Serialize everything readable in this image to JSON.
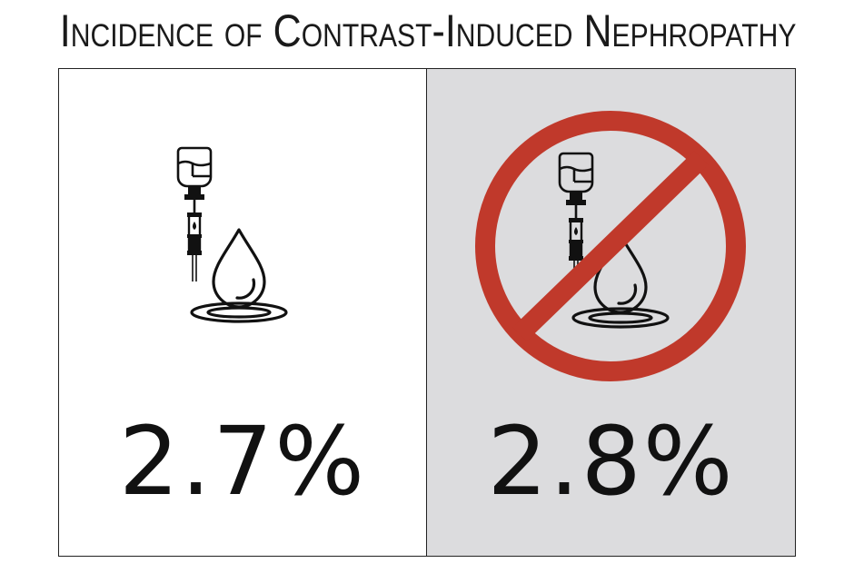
{
  "title": "Incidence of Contrast-Induced Nephropathy",
  "panels": [
    {
      "icon": "iv-contrast-drip-icon",
      "value": "2.7%",
      "background": "#ffffff"
    },
    {
      "icon": "no-contrast-icon",
      "value": "2.8%",
      "background": "#dcdcde",
      "prohibition_color": "#c0392b"
    }
  ]
}
